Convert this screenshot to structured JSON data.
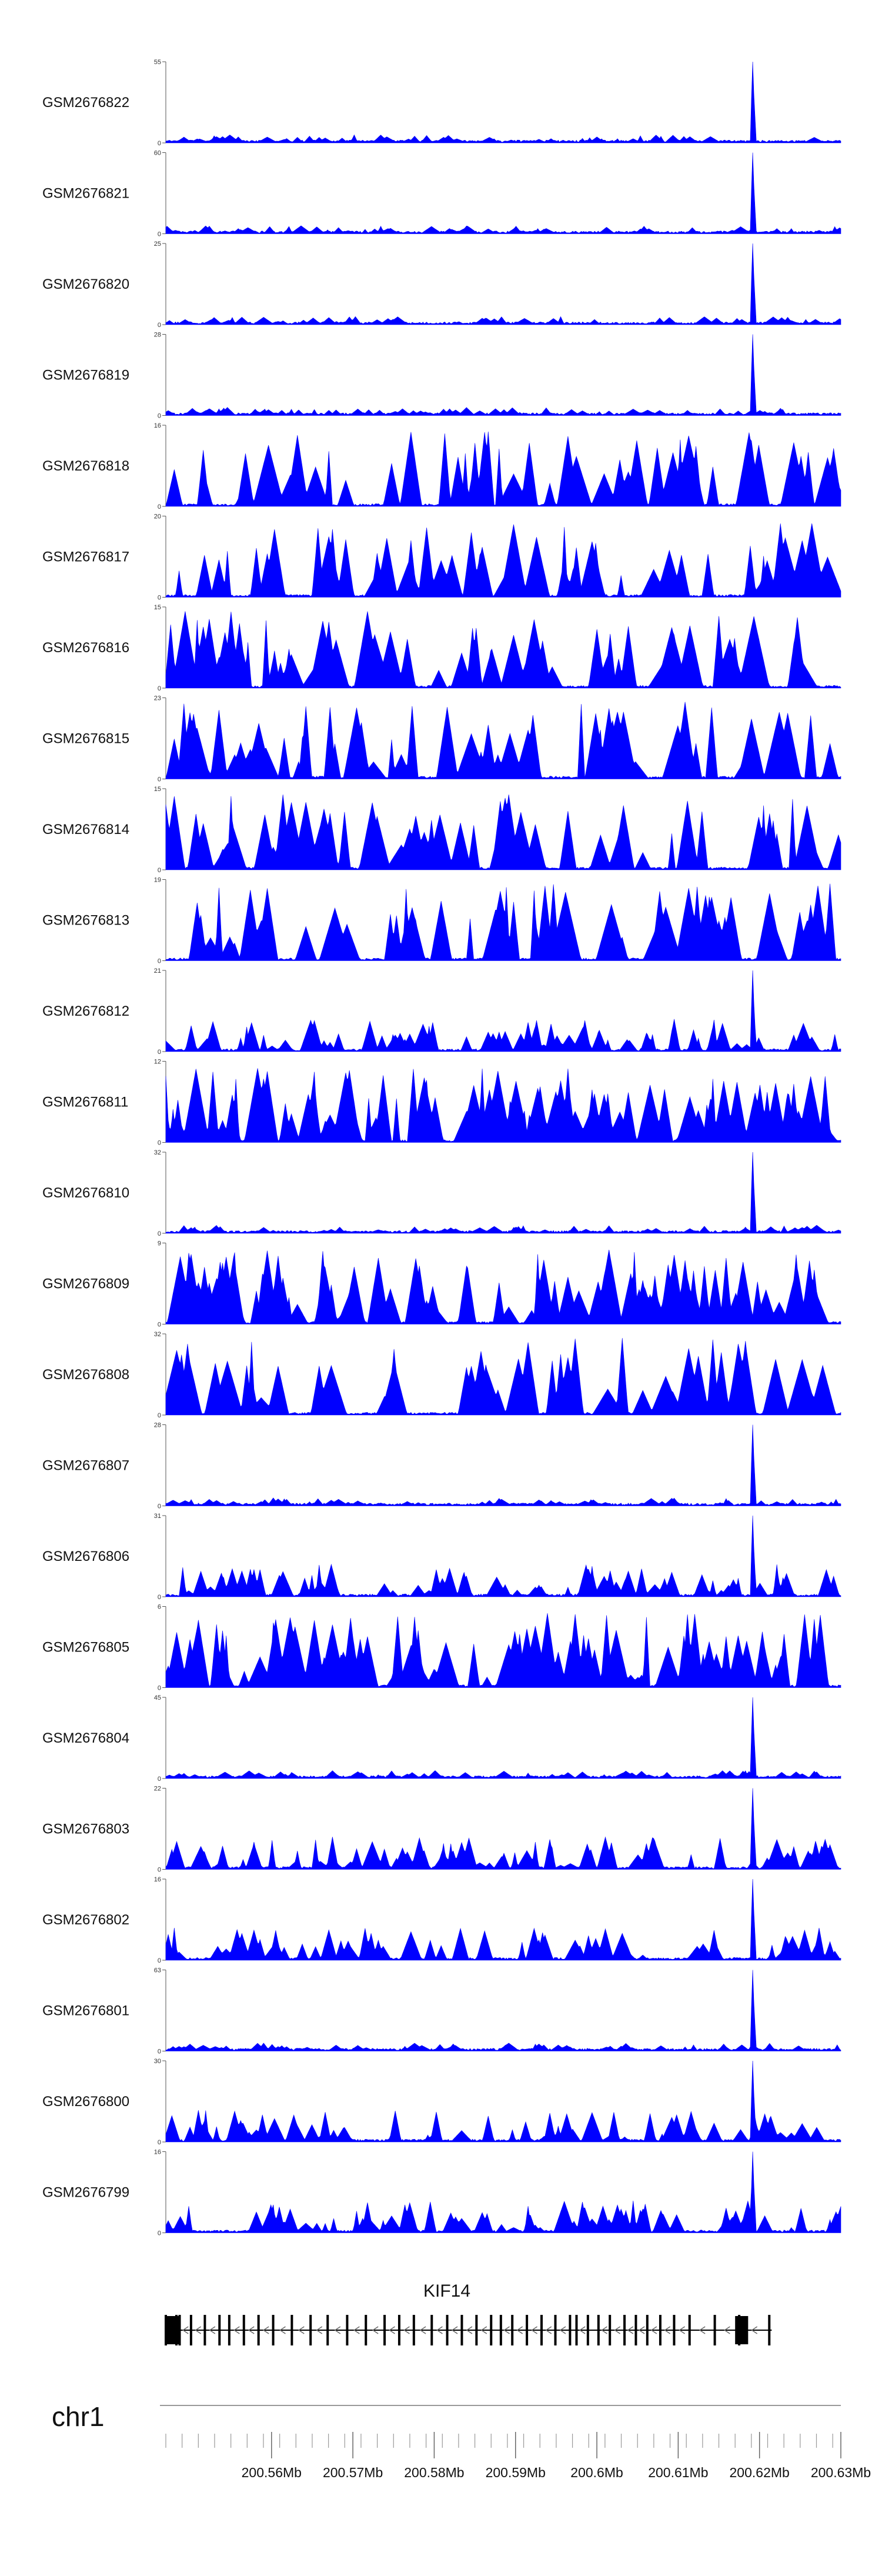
{
  "chart_data": {
    "type": "area",
    "chromosome": "chr1",
    "x_range_mb": [
      200.547,
      200.63
    ],
    "tracks": [
      {
        "label": "GSM2676822",
        "ymax": "55",
        "ymin": "0",
        "color": "#0000ff",
        "profile": "peak",
        "seed": 11
      },
      {
        "label": "GSM2676821",
        "ymax": "60",
        "ymin": "0",
        "color": "#0000ff",
        "profile": "peak",
        "seed": 12
      },
      {
        "label": "GSM2676820",
        "ymax": "25",
        "ymin": "0",
        "color": "#0000ff",
        "profile": "peak",
        "seed": 13
      },
      {
        "label": "GSM2676819",
        "ymax": "28",
        "ymin": "0",
        "color": "#0000ff",
        "profile": "peak",
        "seed": 14
      },
      {
        "label": "GSM2676818",
        "ymax": "16",
        "ymin": "0",
        "color": "#0000ff",
        "profile": "sparse",
        "seed": 15
      },
      {
        "label": "GSM2676817",
        "ymax": "20",
        "ymin": "0",
        "color": "#0000ff",
        "profile": "sparse",
        "seed": 16
      },
      {
        "label": "GSM2676816",
        "ymax": "15",
        "ymin": "0",
        "color": "#0000ff",
        "profile": "sparse",
        "seed": 17
      },
      {
        "label": "GSM2676815",
        "ymax": "23",
        "ymin": "0",
        "color": "#0000ff",
        "profile": "sparse",
        "seed": 18
      },
      {
        "label": "GSM2676814",
        "ymax": "15",
        "ymin": "0",
        "color": "#0000ff",
        "profile": "sparse",
        "seed": 19
      },
      {
        "label": "GSM2676813",
        "ymax": "19",
        "ymin": "0",
        "color": "#0000ff",
        "profile": "sparse",
        "seed": 20
      },
      {
        "label": "GSM2676812",
        "ymax": "21",
        "ymin": "0",
        "color": "#0000ff",
        "profile": "mixed",
        "seed": 21
      },
      {
        "label": "GSM2676811",
        "ymax": "12",
        "ymin": "0",
        "color": "#0000ff",
        "profile": "dense",
        "seed": 22
      },
      {
        "label": "GSM2676810",
        "ymax": "32",
        "ymin": "0",
        "color": "#0000ff",
        "profile": "peak",
        "seed": 23
      },
      {
        "label": "GSM2676809",
        "ymax": "9",
        "ymin": "0",
        "color": "#0000ff",
        "profile": "dense",
        "seed": 24
      },
      {
        "label": "GSM2676808",
        "ymax": "32",
        "ymin": "0",
        "color": "#0000ff",
        "profile": "sparse",
        "seed": 25
      },
      {
        "label": "GSM2676807",
        "ymax": "28",
        "ymin": "0",
        "color": "#0000ff",
        "profile": "peak",
        "seed": 26
      },
      {
        "label": "GSM2676806",
        "ymax": "31",
        "ymin": "0",
        "color": "#0000ff",
        "profile": "mixed",
        "seed": 27
      },
      {
        "label": "GSM2676805",
        "ymax": "6",
        "ymin": "0",
        "color": "#0000ff",
        "profile": "dense",
        "seed": 28
      },
      {
        "label": "GSM2676804",
        "ymax": "45",
        "ymin": "0",
        "color": "#0000ff",
        "profile": "peak",
        "seed": 29
      },
      {
        "label": "GSM2676803",
        "ymax": "22",
        "ymin": "0",
        "color": "#0000ff",
        "profile": "mixed",
        "seed": 30
      },
      {
        "label": "GSM2676802",
        "ymax": "16",
        "ymin": "0",
        "color": "#0000ff",
        "profile": "mixed",
        "seed": 31
      },
      {
        "label": "GSM2676801",
        "ymax": "63",
        "ymin": "0",
        "color": "#0000ff",
        "profile": "peak",
        "seed": 32
      },
      {
        "label": "GSM2676800",
        "ymax": "30",
        "ymin": "0",
        "color": "#0000ff",
        "profile": "mixed",
        "seed": 33
      },
      {
        "label": "GSM2676799",
        "ymax": "16",
        "ymin": "0",
        "color": "#0000ff",
        "profile": "mixed",
        "seed": 34
      }
    ],
    "gene": {
      "name": "KIF14",
      "strand": "-",
      "start_mb": 200.547,
      "end_mb": 200.6215,
      "exons_mb": [
        200.547,
        200.5483,
        200.5487,
        200.5501,
        200.5518,
        200.5536,
        200.5548,
        200.5566,
        200.5584,
        200.5602,
        200.5625,
        200.5648,
        200.5669,
        200.5693,
        200.5716,
        200.5739,
        200.5757,
        200.5775,
        200.5797,
        200.5816,
        200.5834,
        200.5852,
        200.587,
        200.5882,
        200.5896,
        200.5914,
        200.5932,
        200.5949,
        200.5967,
        200.5975,
        200.5989,
        200.6002,
        200.6016,
        200.6034,
        200.6048,
        200.6062,
        200.6078,
        200.6095,
        200.6114,
        200.6145,
        200.6175,
        200.6212
      ],
      "thick_exons_mb": [
        [
          200.547,
          200.5488
        ],
        [
          200.617,
          200.6186
        ]
      ],
      "color": "#000000"
    },
    "axis": {
      "ticks_mb": [
        200.56,
        200.57,
        200.58,
        200.59,
        200.6,
        200.61,
        200.62,
        200.63
      ],
      "tick_labels": [
        "200.56Mb",
        "200.57Mb",
        "200.58Mb",
        "200.59Mb",
        "200.6Mb",
        "200.61Mb",
        "200.62Mb",
        "200.63Mb"
      ],
      "minor_tick_interval_mb": 0.002,
      "line_color": "#999999"
    }
  }
}
